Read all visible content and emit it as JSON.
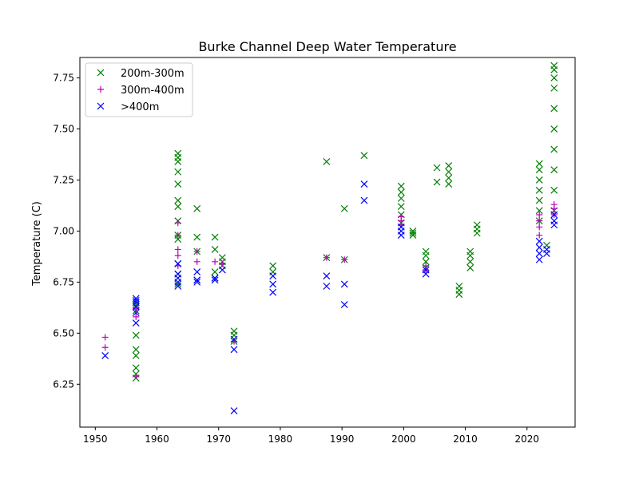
{
  "chart_data": {
    "type": "scatter",
    "title": "Burke Channel Deep Water Temperature",
    "xlabel": "",
    "ylabel": "Temperature (C)",
    "xlim": [
      1947.5,
      2027.8
    ],
    "ylim": [
      6.04,
      7.85
    ],
    "xticks": [
      1950,
      1960,
      1970,
      1980,
      1990,
      2000,
      2010,
      2020
    ],
    "yticks": [
      6.25,
      6.5,
      6.75,
      7.0,
      7.25,
      7.5,
      7.75
    ],
    "ytick_labels": [
      "6.25",
      "6.50",
      "6.75",
      "7.00",
      "7.25",
      "7.50",
      "7.75"
    ],
    "grid": false,
    "legend_position": "top-left",
    "series": [
      {
        "name": "200m-300m",
        "marker": "x",
        "color": "#008000",
        "points": [
          [
            1956.6,
            6.28
          ],
          [
            1956.6,
            6.3
          ],
          [
            1956.6,
            6.33
          ],
          [
            1956.6,
            6.39
          ],
          [
            1956.6,
            6.42
          ],
          [
            1956.6,
            6.49
          ],
          [
            1956.6,
            6.61
          ],
          [
            1956.6,
            6.63
          ],
          [
            1956.6,
            6.64
          ],
          [
            1963.4,
            6.74
          ],
          [
            1963.4,
            6.79
          ],
          [
            1963.4,
            6.84
          ],
          [
            1963.4,
            6.96
          ],
          [
            1963.4,
            6.98
          ],
          [
            1963.4,
            7.05
          ],
          [
            1963.4,
            7.12
          ],
          [
            1963.4,
            7.15
          ],
          [
            1963.4,
            7.23
          ],
          [
            1963.4,
            7.29
          ],
          [
            1963.4,
            7.34
          ],
          [
            1963.4,
            7.36
          ],
          [
            1963.4,
            7.38
          ],
          [
            1966.5,
            6.76
          ],
          [
            1966.5,
            6.9
          ],
          [
            1966.5,
            6.97
          ],
          [
            1966.5,
            7.11
          ],
          [
            1969.4,
            6.77
          ],
          [
            1969.4,
            6.8
          ],
          [
            1969.4,
            6.91
          ],
          [
            1969.4,
            6.97
          ],
          [
            1970.6,
            6.83
          ],
          [
            1970.6,
            6.85
          ],
          [
            1970.6,
            6.87
          ],
          [
            1972.5,
            6.46
          ],
          [
            1972.5,
            6.49
          ],
          [
            1972.5,
            6.51
          ],
          [
            1978.8,
            6.8
          ],
          [
            1978.8,
            6.83
          ],
          [
            1987.5,
            6.87
          ],
          [
            1987.5,
            7.34
          ],
          [
            1990.4,
            6.86
          ],
          [
            1990.4,
            7.11
          ],
          [
            1993.6,
            7.37
          ],
          [
            1999.6,
            7.04
          ],
          [
            1999.6,
            7.08
          ],
          [
            1999.6,
            7.12
          ],
          [
            1999.6,
            7.16
          ],
          [
            1999.6,
            7.19
          ],
          [
            1999.6,
            7.22
          ],
          [
            2001.5,
            6.98
          ],
          [
            2001.5,
            6.99
          ],
          [
            2001.5,
            7.0
          ],
          [
            2003.6,
            6.82
          ],
          [
            2003.6,
            6.85
          ],
          [
            2003.6,
            6.88
          ],
          [
            2003.6,
            6.9
          ],
          [
            2005.4,
            7.24
          ],
          [
            2005.4,
            7.31
          ],
          [
            2007.3,
            7.23
          ],
          [
            2007.3,
            7.26
          ],
          [
            2007.3,
            7.29
          ],
          [
            2007.3,
            7.32
          ],
          [
            2009.0,
            6.69
          ],
          [
            2009.0,
            6.71
          ],
          [
            2009.0,
            6.73
          ],
          [
            2010.8,
            6.82
          ],
          [
            2010.8,
            6.85
          ],
          [
            2010.8,
            6.88
          ],
          [
            2010.8,
            6.9
          ],
          [
            2011.9,
            6.99
          ],
          [
            2011.9,
            7.01
          ],
          [
            2011.9,
            7.03
          ],
          [
            2022.0,
            7.05
          ],
          [
            2022.0,
            7.1
          ],
          [
            2022.0,
            7.15
          ],
          [
            2022.0,
            7.2
          ],
          [
            2022.0,
            7.25
          ],
          [
            2022.0,
            7.3
          ],
          [
            2022.0,
            7.33
          ],
          [
            2023.2,
            6.93
          ],
          [
            2024.4,
            7.1
          ],
          [
            2024.4,
            7.2
          ],
          [
            2024.4,
            7.3
          ],
          [
            2024.4,
            7.4
          ],
          [
            2024.4,
            7.5
          ],
          [
            2024.4,
            7.6
          ],
          [
            2024.4,
            7.7
          ],
          [
            2024.4,
            7.75
          ],
          [
            2024.4,
            7.79
          ],
          [
            2024.4,
            7.81
          ]
        ]
      },
      {
        "name": "300m-400m",
        "marker": "+",
        "color": "#bf00bf",
        "points": [
          [
            1951.6,
            6.48
          ],
          [
            1951.6,
            6.43
          ],
          [
            1956.6,
            6.29
          ],
          [
            1956.6,
            6.58
          ],
          [
            1956.6,
            6.62
          ],
          [
            1963.4,
            6.83
          ],
          [
            1963.4,
            6.88
          ],
          [
            1963.4,
            6.91
          ],
          [
            1963.4,
            6.98
          ],
          [
            1963.4,
            7.04
          ],
          [
            1966.5,
            6.85
          ],
          [
            1966.5,
            6.9
          ],
          [
            1969.4,
            6.85
          ],
          [
            1970.6,
            6.84
          ],
          [
            1972.5,
            6.46
          ],
          [
            1987.5,
            6.87
          ],
          [
            1990.4,
            6.86
          ],
          [
            1999.6,
            7.03
          ],
          [
            1999.6,
            7.05
          ],
          [
            1999.6,
            7.07
          ],
          [
            2003.6,
            6.81
          ],
          [
            2003.6,
            6.83
          ],
          [
            2022.0,
            6.98
          ],
          [
            2022.0,
            7.02
          ],
          [
            2022.0,
            7.05
          ],
          [
            2022.0,
            7.08
          ],
          [
            2024.4,
            7.08
          ],
          [
            2024.4,
            7.11
          ],
          [
            2024.4,
            7.13
          ]
        ]
      },
      {
        "name": ">400m",
        "marker": "x",
        "color": "#0000ff",
        "points": [
          [
            1951.6,
            6.39
          ],
          [
            1956.6,
            6.55
          ],
          [
            1956.6,
            6.6
          ],
          [
            1956.6,
            6.63
          ],
          [
            1956.6,
            6.65
          ],
          [
            1956.6,
            6.66
          ],
          [
            1956.6,
            6.67
          ],
          [
            1963.4,
            6.73
          ],
          [
            1963.4,
            6.75
          ],
          [
            1963.4,
            6.77
          ],
          [
            1963.4,
            6.79
          ],
          [
            1963.4,
            6.84
          ],
          [
            1966.5,
            6.75
          ],
          [
            1966.5,
            6.76
          ],
          [
            1966.5,
            6.8
          ],
          [
            1969.4,
            6.76
          ],
          [
            1969.4,
            6.77
          ],
          [
            1970.6,
            6.81
          ],
          [
            1972.5,
            6.12
          ],
          [
            1972.5,
            6.42
          ],
          [
            1972.5,
            6.47
          ],
          [
            1978.8,
            6.7
          ],
          [
            1978.8,
            6.74
          ],
          [
            1978.8,
            6.78
          ],
          [
            1987.5,
            6.73
          ],
          [
            1987.5,
            6.78
          ],
          [
            1990.4,
            6.64
          ],
          [
            1990.4,
            6.74
          ],
          [
            1993.6,
            7.15
          ],
          [
            1993.6,
            7.23
          ],
          [
            1999.6,
            6.98
          ],
          [
            1999.6,
            7.0
          ],
          [
            1999.6,
            7.02
          ],
          [
            2003.6,
            6.79
          ],
          [
            2003.6,
            6.81
          ],
          [
            2022.0,
            6.86
          ],
          [
            2022.0,
            6.89
          ],
          [
            2022.0,
            6.92
          ],
          [
            2022.0,
            6.95
          ],
          [
            2023.2,
            6.89
          ],
          [
            2023.2,
            6.91
          ],
          [
            2024.4,
            7.03
          ],
          [
            2024.4,
            7.05
          ],
          [
            2024.4,
            7.08
          ]
        ]
      }
    ]
  }
}
